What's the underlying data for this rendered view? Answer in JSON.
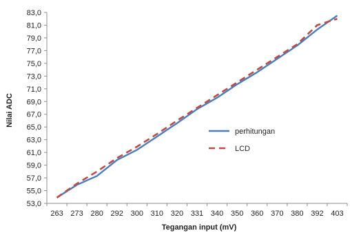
{
  "chart_data": {
    "type": "line",
    "xlabel": "Tegangan input (mV)",
    "ylabel": "Nilai ADC",
    "categories": [
      "263",
      "273",
      "280",
      "292",
      "300",
      "310",
      "320",
      "331",
      "340",
      "350",
      "360",
      "370",
      "380",
      "392",
      "403"
    ],
    "y_ticks": [
      "53,0",
      "55,0",
      "57,0",
      "59,0",
      "61,0",
      "63,0",
      "65,0",
      "67,0",
      "69,0",
      "71,0",
      "73,0",
      "75,0",
      "77,0",
      "79,0",
      "81,0",
      "83,0"
    ],
    "ylim": [
      53,
      83
    ],
    "grid": false,
    "legend_position": "right",
    "series": [
      {
        "name": "perhitungan",
        "color": "#4a7ebb",
        "style": "solid",
        "values": [
          53.9,
          55.9,
          57.3,
          59.8,
          61.4,
          63.5,
          65.6,
          67.8,
          69.6,
          71.7,
          73.6,
          75.7,
          77.8,
          80.3,
          82.5
        ]
      },
      {
        "name": "LCD",
        "color": "#be4b48",
        "style": "dashed",
        "values": [
          53.9,
          56.1,
          58.0,
          60.1,
          61.9,
          63.9,
          66.0,
          68.0,
          70.0,
          72.0,
          74.0,
          76.0,
          78.0,
          81.0,
          82.0
        ]
      }
    ]
  }
}
